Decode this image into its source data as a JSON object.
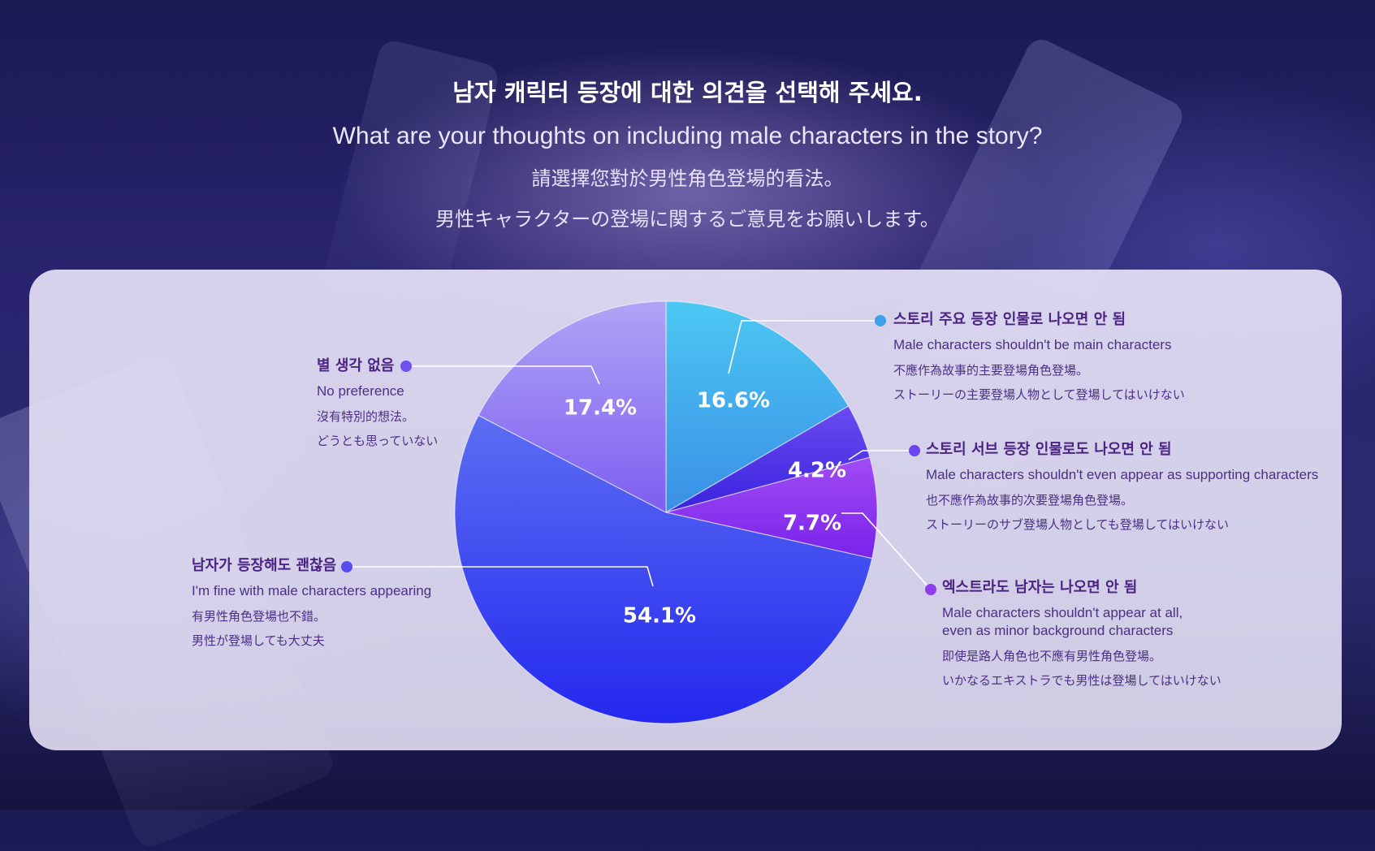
{
  "header": {
    "title_ko": "남자 캐릭터 등장에 대한 의견을 선택해 주세요.",
    "title_en": "What are your thoughts on including male characters in the story?",
    "title_zh": "請選擇您對於男性角色登場的看法。",
    "title_ja": "男性キャラクターの登場に関するご意見をお願いします。"
  },
  "chart_data": {
    "type": "pie",
    "title": "What are your thoughts on including male characters in the story?",
    "slices": [
      {
        "label_ko": "스토리 주요 등장 인물로 나오면 안 됨",
        "label_en": "Male characters shouldn't be main characters",
        "label_zh": "不應作為故事的主要登場角色登場。",
        "label_ja": "ストーリーの主要登場人物として登場してはいけない",
        "value": 16.6,
        "display": "16.6%",
        "color": "#3fa2e8"
      },
      {
        "label_ko": "스토리 서브 등장 인물로도 나오면 안 됨",
        "label_en": "Male characters shouldn't even appear as supporting characters",
        "label_zh": "也不應作為故事的次要登場角色登場。",
        "label_ja": "ストーリーのサブ登場人物としても登場してはいけない",
        "value": 4.2,
        "display": "4.2%",
        "color": "#5233e0"
      },
      {
        "label_ko": "엑스트라도 남자는 나오면 안 됨",
        "label_en": "Male characters shouldn't appear at all,",
        "label_en2": "even as minor background characters",
        "label_zh": "即使是路人角色也不應有男性角色登場。",
        "label_ja": "いかなるエキストラでも男性は登場してはいけない",
        "value": 7.7,
        "display": "7.7%",
        "color": "#8a32ee"
      },
      {
        "label_ko": "남자가 등장해도 괜찮음",
        "label_en": "I'm fine with male characters appearing",
        "label_zh": "有男性角色登場也不錯。",
        "label_ja": "男性が登場しても大丈夫",
        "value": 54.1,
        "display": "54.1%",
        "color": "#3e46ec"
      },
      {
        "label_ko": "별 생각 없음",
        "label_en": "No preference",
        "label_zh": "沒有特別的想法。",
        "label_ja": "どうとも思っていない",
        "value": 17.4,
        "display": "17.4%",
        "color": "#8f7cf0"
      }
    ]
  }
}
